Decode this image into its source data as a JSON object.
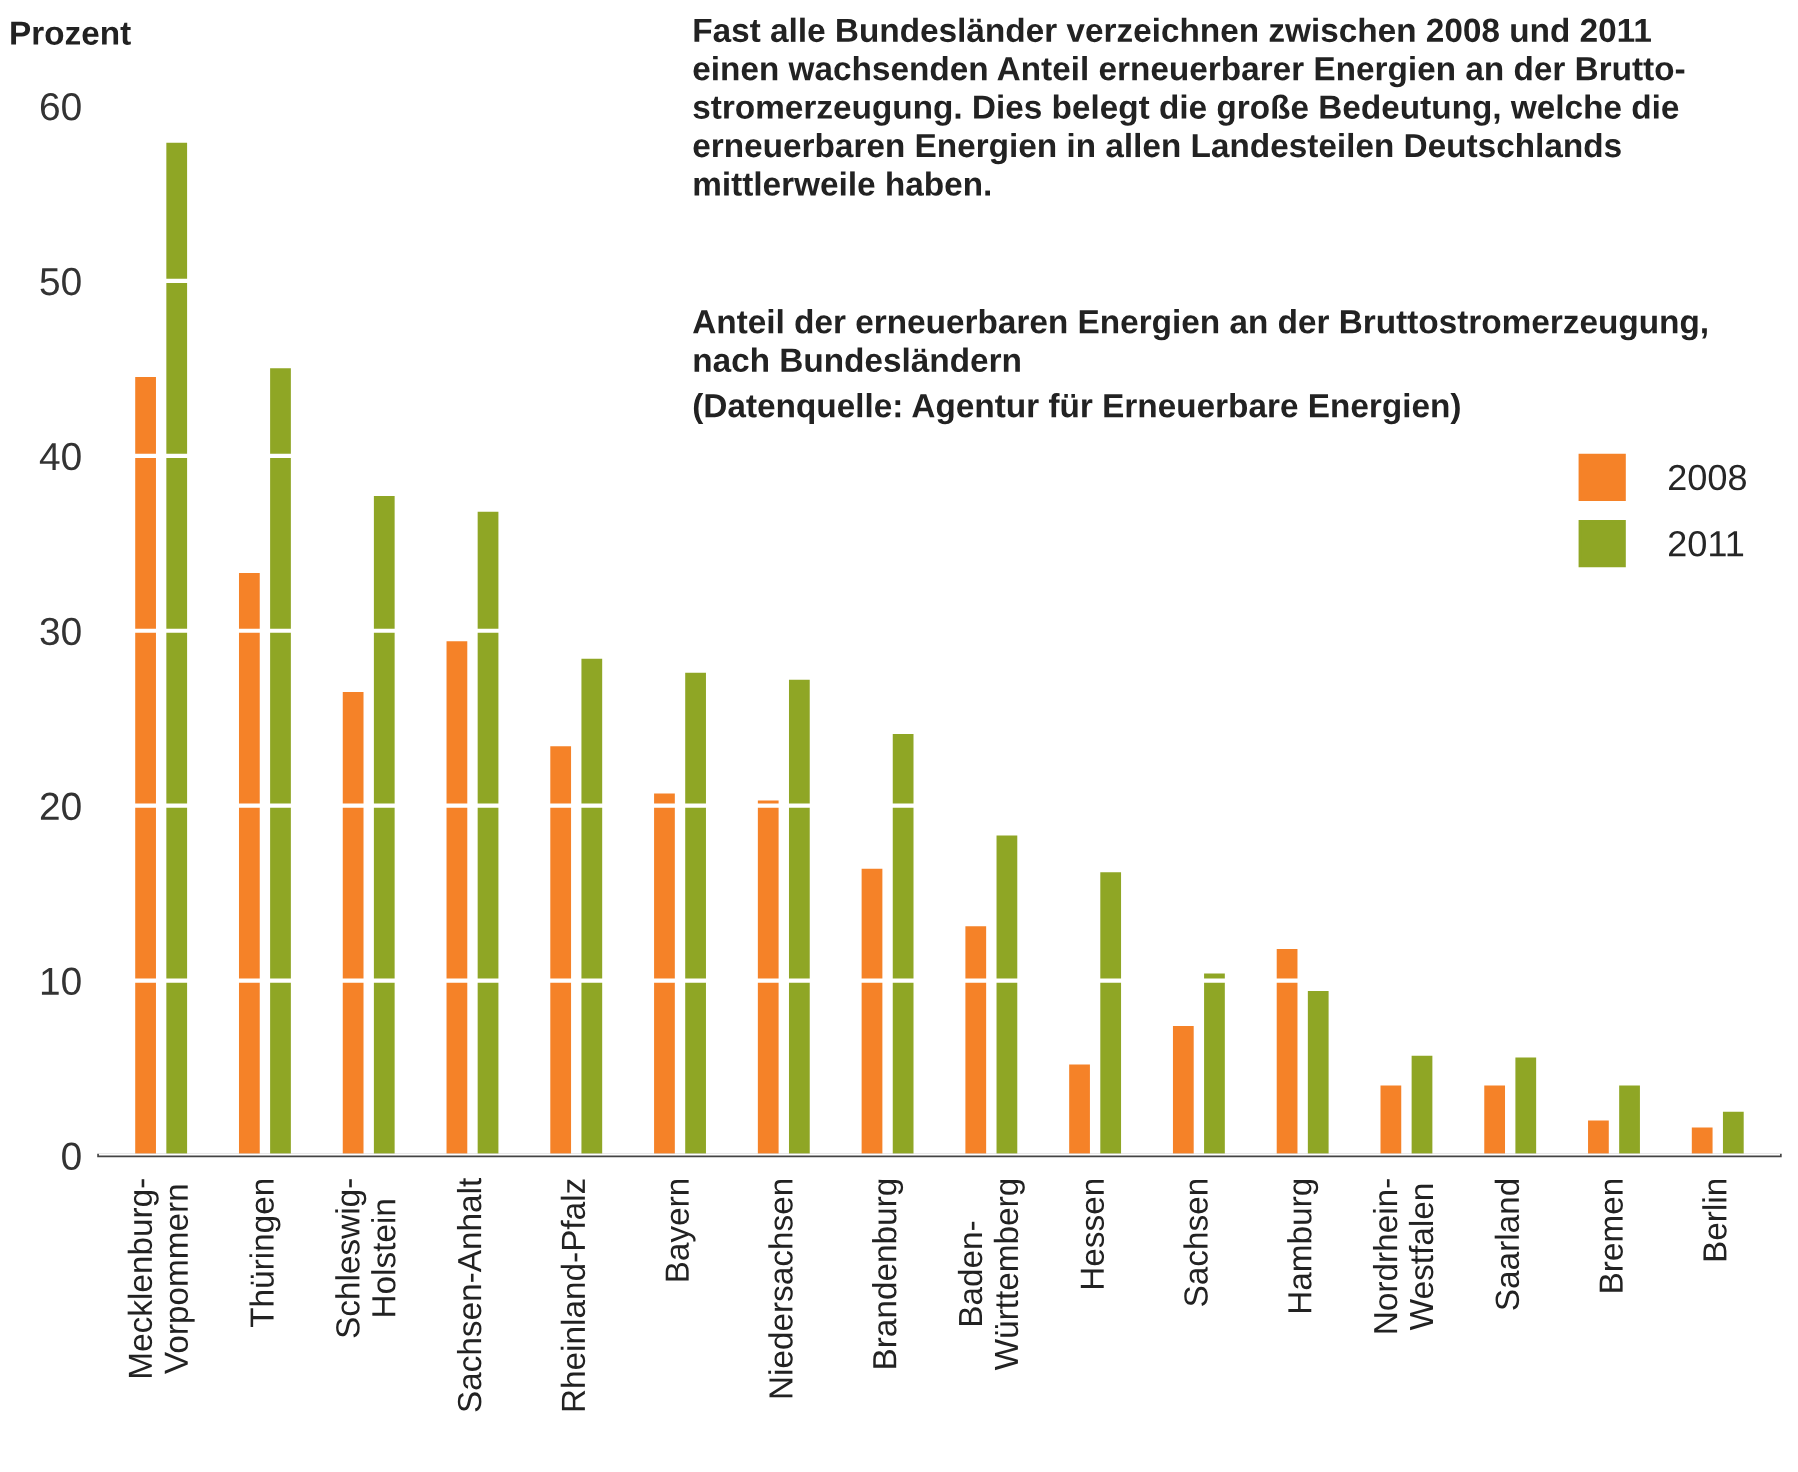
{
  "chart_data": {
    "type": "bar",
    "title": "Fast alle Bundesländer verzeichnen zwischen 2008 und 2011\neinen wachsenden Anteil erneuerbarer Energien an der Brutto-\nstromerzeugung. Dies belegt die große Bedeutung, welche die\nerneuerbaren Energien in allen Landesteilen Deutschlands\nmittlerweile haben.",
    "subtitle": "Anteil der erneuerbaren Energien an der Bruttostromerzeugung,\nnach Bundesländern",
    "annotations": [
      "(Datenquelle: Agentur für Erneuerbare Energien)"
    ],
    "ylabel": "Prozent",
    "categories": [
      "Mecklenburg-\nVorpommern",
      "Thüringen",
      "Schleswig-\nHolstein",
      "Sachsen-Anhalt",
      "Rheinland-Pfalz",
      "Bayern",
      "Niedersachsen",
      "Brandenburg",
      "Baden-\nWürttemberg",
      "Hessen",
      "Sachsen",
      "Hamburg",
      "Nordrhein-\nWestfalen",
      "Saarland",
      "Bremen",
      "Berlin"
    ],
    "series": [
      {
        "name": "2008",
        "color": "#f58228",
        "values": [
          44.5,
          33.3,
          26.5,
          29.4,
          23.4,
          20.7,
          20.3,
          16.4,
          13.1,
          5.2,
          7.4,
          11.8,
          4.0,
          4.0,
          2.0,
          1.6
        ]
      },
      {
        "name": "2011",
        "color": "#8fa625",
        "values": [
          57.9,
          45.0,
          37.7,
          36.8,
          28.4,
          27.6,
          27.2,
          24.1,
          18.3,
          16.2,
          10.4,
          9.4,
          5.7,
          5.6,
          4.0,
          2.5
        ]
      }
    ],
    "ylim": [
      0,
      60
    ],
    "yticks": [
      0,
      10,
      20,
      30,
      40,
      50,
      60
    ],
    "grid": "y",
    "legend": "top right"
  }
}
